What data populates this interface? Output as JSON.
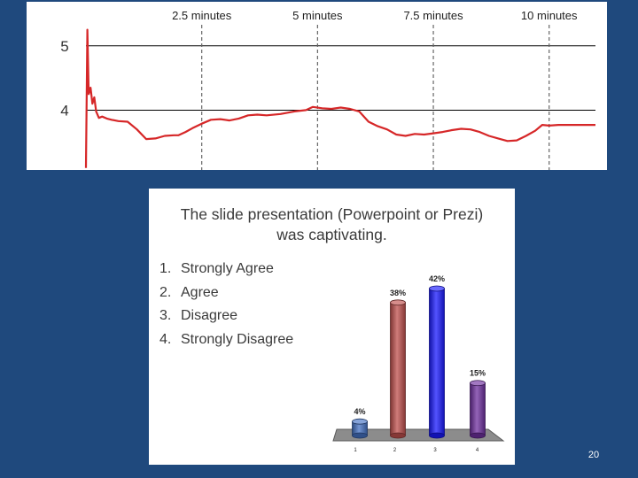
{
  "chart_data": [
    {
      "type": "line",
      "time_labels": [
        "2.5 minutes",
        "5 minutes",
        "7.5 minutes",
        "10 minutes"
      ],
      "time_label_positions_min": [
        2.5,
        5,
        7.5,
        10
      ],
      "y_ticks": [
        "5",
        "4"
      ],
      "y_tick_values": [
        5,
        4
      ],
      "xlim": [
        0,
        11
      ],
      "ylim": [
        3.07,
        5.3
      ],
      "line_color": "#d62728",
      "series": [
        {
          "x": [
            0.0,
            0.03,
            0.06,
            0.1,
            0.14,
            0.18,
            0.22,
            0.28,
            0.35,
            0.45,
            0.55,
            0.7,
            0.9,
            1.1,
            1.3,
            1.5,
            1.7,
            1.9,
            2.0,
            2.15,
            2.3,
            2.5,
            2.7,
            2.9,
            3.1,
            3.3,
            3.5,
            3.7,
            3.9,
            4.2,
            4.5,
            4.75,
            4.9,
            5.1,
            5.3,
            5.5,
            5.7,
            5.9,
            6.1,
            6.3,
            6.5,
            6.7,
            6.9,
            7.1,
            7.3,
            7.5,
            7.7,
            7.9,
            8.1,
            8.3,
            8.5,
            8.7,
            8.9,
            9.1,
            9.3,
            9.5,
            9.7,
            9.85,
            10.0,
            10.2,
            10.5,
            10.8,
            11.0
          ],
          "y": [
            3.1,
            5.25,
            4.25,
            4.35,
            4.1,
            4.2,
            3.98,
            3.88,
            3.9,
            3.87,
            3.85,
            3.83,
            3.82,
            3.7,
            3.55,
            3.56,
            3.6,
            3.61,
            3.61,
            3.66,
            3.72,
            3.79,
            3.85,
            3.86,
            3.84,
            3.87,
            3.92,
            3.93,
            3.92,
            3.94,
            3.98,
            4.0,
            4.05,
            4.03,
            4.02,
            4.04,
            4.02,
            3.98,
            3.82,
            3.75,
            3.7,
            3.62,
            3.6,
            3.63,
            3.62,
            3.64,
            3.66,
            3.69,
            3.71,
            3.7,
            3.66,
            3.6,
            3.56,
            3.52,
            3.53,
            3.6,
            3.68,
            3.77,
            3.76,
            3.77,
            3.77,
            3.77,
            3.77
          ]
        }
      ]
    },
    {
      "type": "bar",
      "title_lines": [
        "The slide presentation (Powerpoint or Prezi)",
        "was captivating."
      ],
      "options": [
        {
          "num": "1.",
          "text": "Strongly Agree"
        },
        {
          "num": "2.",
          "text": "Agree"
        },
        {
          "num": "3.",
          "text": "Disagree"
        },
        {
          "num": "4.",
          "text": "Strongly Disagree"
        }
      ],
      "categories": [
        "1",
        "2",
        "3",
        "4"
      ],
      "values": [
        4,
        38,
        42,
        15
      ],
      "value_labels": [
        "4%",
        "38%",
        "42%",
        "15%"
      ],
      "ylim": [
        0,
        42
      ],
      "colors": [
        "#4472c4",
        "#c0504d",
        "#1a1aff",
        "#7030a0"
      ]
    }
  ],
  "slide_number": "20"
}
